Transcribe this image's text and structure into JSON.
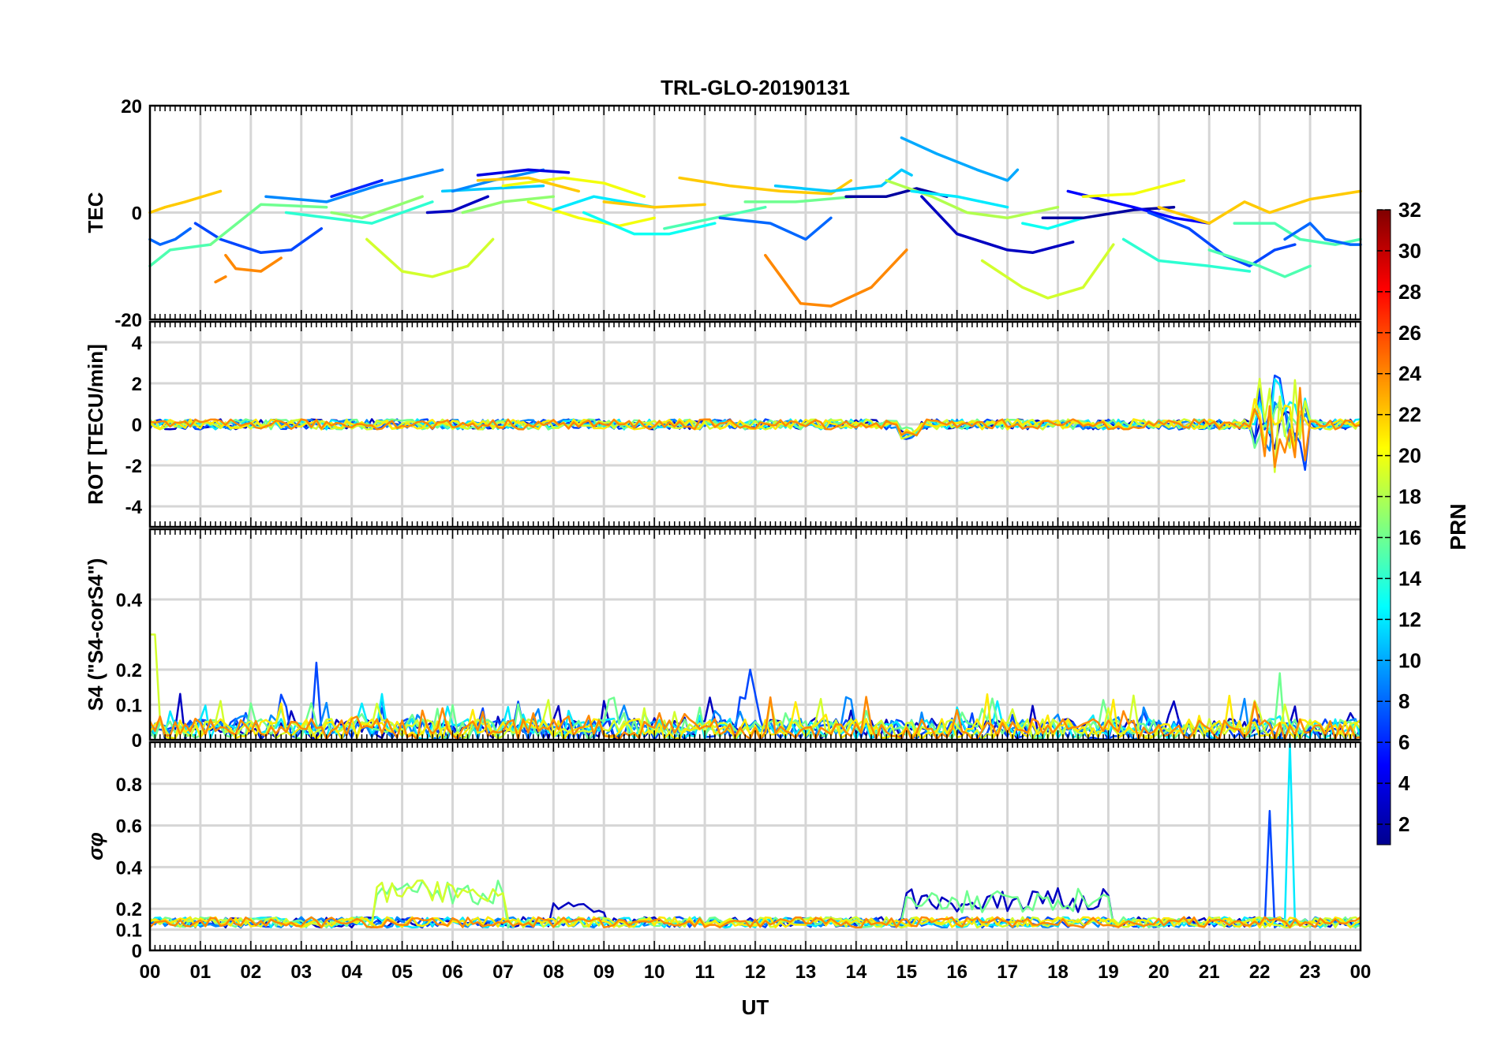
{
  "chart_data": {
    "type": "line",
    "title": "TRL-GLO-20190131",
    "xlabel": "UT",
    "x_ticks": [
      "00",
      "01",
      "02",
      "03",
      "04",
      "05",
      "06",
      "07",
      "08",
      "09",
      "10",
      "11",
      "12",
      "13",
      "14",
      "15",
      "16",
      "17",
      "18",
      "19",
      "20",
      "21",
      "22",
      "23",
      "00"
    ],
    "xlim": [
      0,
      24
    ],
    "grid": true,
    "colorbar": {
      "label": "PRN",
      "range": [
        1,
        32
      ],
      "ticks": [
        "2",
        "4",
        "6",
        "8",
        "10",
        "12",
        "14",
        "16",
        "18",
        "20",
        "22",
        "24",
        "26",
        "28",
        "30",
        "32"
      ],
      "colormap": "jet"
    },
    "panels": [
      {
        "id": "tec",
        "ylabel": "TEC",
        "ylim": [
          -20,
          20
        ],
        "y_ticks": [
          "20",
          "0",
          "-20"
        ],
        "y_tick_values": [
          20,
          0,
          -20
        ],
        "series": [
          {
            "prn": 22,
            "x": [
              0,
              0.3,
              0.7,
              1.4
            ],
            "y": [
              0,
              1,
              2,
              4
            ]
          },
          {
            "prn": 8,
            "x": [
              0,
              0.2,
              0.5,
              0.8
            ],
            "y": [
              -5,
              -6,
              -5,
              -3
            ]
          },
          {
            "prn": 15,
            "x": [
              0,
              0.4,
              0.8,
              1.2
            ],
            "y": [
              -10,
              -7,
              -6.5,
              -6
            ]
          },
          {
            "prn": 24,
            "x": [
              1.3,
              1.5
            ],
            "y": [
              -13,
              -12
            ]
          },
          {
            "prn": 24,
            "x": [
              1.5,
              1.7,
              2.2,
              2.6
            ],
            "y": [
              -8,
              -10.5,
              -11,
              -8.5
            ]
          },
          {
            "prn": 7,
            "x": [
              0.9,
              1.4,
              2.2,
              2.8,
              3.4
            ],
            "y": [
              -2,
              -5,
              -7.5,
              -7,
              -3
            ]
          },
          {
            "prn": 16,
            "x": [
              1.2,
              2.2,
              3.5
            ],
            "y": [
              -6,
              1.5,
              1
            ]
          },
          {
            "prn": 9,
            "x": [
              2.3,
              3.5,
              4.5,
              5.8
            ],
            "y": [
              3,
              2,
              5,
              8
            ]
          },
          {
            "prn": 6,
            "x": [
              3.6,
              4.6
            ],
            "y": [
              3,
              6
            ]
          },
          {
            "prn": 14,
            "x": [
              2.7,
              4.4,
              5.6
            ],
            "y": [
              0,
              -2,
              2
            ]
          },
          {
            "prn": 19,
            "x": [
              4.3,
              5.0,
              5.6,
              6.3,
              6.8
            ],
            "y": [
              -5,
              -11,
              -12,
              -10,
              -5
            ]
          },
          {
            "prn": 17,
            "x": [
              3.6,
              4.2,
              5.4
            ],
            "y": [
              0,
              -1,
              3
            ]
          },
          {
            "prn": 3,
            "x": [
              5.5,
              6.0,
              6.7
            ],
            "y": [
              0,
              0.3,
              3
            ]
          },
          {
            "prn": 11,
            "x": [
              5.8,
              6.8,
              7.8
            ],
            "y": [
              4,
              4.5,
              5
            ]
          },
          {
            "prn": 9,
            "x": [
              6.0,
              6.8,
              7.8
            ],
            "y": [
              4,
              6,
              8
            ]
          },
          {
            "prn": 4,
            "x": [
              6.5,
              7.5,
              8.3
            ],
            "y": [
              7,
              8,
              7.5
            ]
          },
          {
            "prn": 17,
            "x": [
              6.2,
              7.0,
              8.0
            ],
            "y": [
              0,
              2,
              3
            ]
          },
          {
            "prn": 20,
            "x": [
              7.0,
              8.2,
              9.0,
              9.8
            ],
            "y": [
              5,
              6.5,
              5.5,
              3
            ]
          },
          {
            "prn": 20,
            "x": [
              7.5,
              8.5,
              9.3,
              10.0
            ],
            "y": [
              2,
              -1,
              -2.5,
              -1
            ]
          },
          {
            "prn": 22,
            "x": [
              6.5,
              7.5,
              8.5
            ],
            "y": [
              6,
              6.5,
              4
            ]
          },
          {
            "prn": 13,
            "x": [
              8.6,
              9.6,
              10.3,
              11.2
            ],
            "y": [
              0,
              -4,
              -4,
              -2
            ]
          },
          {
            "prn": 12,
            "x": [
              8.0,
              8.8,
              10.0
            ],
            "y": [
              0.5,
              3,
              1
            ]
          },
          {
            "prn": 22,
            "x": [
              9.0,
              10.0,
              11.0
            ],
            "y": [
              2,
              1,
              1.5
            ]
          },
          {
            "prn": 15,
            "x": [
              10.2,
              11.2,
              12.2
            ],
            "y": [
              -3,
              -1,
              1
            ]
          },
          {
            "prn": 22,
            "x": [
              10.5,
              11.5,
              12.5,
              13.5,
              13.9
            ],
            "y": [
              6.5,
              5,
              4,
              3.5,
              6
            ]
          },
          {
            "prn": 8,
            "x": [
              11.3,
              12.3,
              13.0,
              13.5
            ],
            "y": [
              -1,
              -2,
              -5,
              -1
            ]
          },
          {
            "prn": 16,
            "x": [
              11.8,
              12.8,
              14.0
            ],
            "y": [
              2,
              2,
              3
            ]
          },
          {
            "prn": 24,
            "x": [
              12.2,
              12.9,
              13.5,
              14.3,
              15.0
            ],
            "y": [
              -8,
              -17,
              -17.5,
              -14,
              -7
            ]
          },
          {
            "prn": 11,
            "x": [
              12.4,
              13.5,
              14.5,
              14.9,
              15.1
            ],
            "y": [
              5,
              4,
              5,
              8,
              7
            ]
          },
          {
            "prn": 2,
            "x": [
              13.8,
              14.6,
              15.2,
              15.8
            ],
            "y": [
              3,
              3,
              4.5,
              3
            ]
          },
          {
            "prn": 10,
            "x": [
              14.9,
              15.6,
              16.4,
              17.0,
              17.2
            ],
            "y": [
              14,
              11,
              8,
              6,
              8
            ]
          },
          {
            "prn": 3,
            "x": [
              15.3,
              16.0,
              17.0,
              17.5,
              18.3
            ],
            "y": [
              3,
              -4,
              -7,
              -7.5,
              -5.5
            ]
          },
          {
            "prn": 18,
            "x": [
              14.6,
              15.5,
              16.2,
              17.0,
              18.0
            ],
            "y": [
              6,
              3,
              0,
              -1,
              1
            ]
          },
          {
            "prn": 12,
            "x": [
              15.1,
              16.0,
              17.0
            ],
            "y": [
              4,
              3,
              1
            ]
          },
          {
            "prn": 19,
            "x": [
              16.5,
              17.3,
              17.8,
              18.5,
              19.1
            ],
            "y": [
              -9,
              -14,
              -16,
              -14,
              -6
            ]
          },
          {
            "prn": 13,
            "x": [
              17.3,
              17.8,
              18.5
            ],
            "y": [
              -2,
              -3,
              -1
            ]
          },
          {
            "prn": 2,
            "x": [
              17.7,
              18.5,
              19.5,
              20.3
            ],
            "y": [
              -1,
              -1,
              0.5,
              1
            ]
          },
          {
            "prn": 5,
            "x": [
              18.2,
              19.5,
              20.3,
              21.0
            ],
            "y": [
              4,
              1,
              -1,
              -2
            ]
          },
          {
            "prn": 20,
            "x": [
              18.5,
              19.5,
              20.5
            ],
            "y": [
              3,
              3.5,
              6
            ]
          },
          {
            "prn": 14,
            "x": [
              19.3,
              20.0,
              21.0,
              21.8
            ],
            "y": [
              -5,
              -9,
              -10,
              -11
            ]
          },
          {
            "prn": 22,
            "x": [
              20.0,
              21.0,
              21.7,
              22.2,
              23.0,
              24.0
            ],
            "y": [
              1,
              -2,
              2,
              0,
              2.5,
              4
            ]
          },
          {
            "prn": 7,
            "x": [
              19.8,
              20.6,
              21.3,
              21.8,
              22.3,
              22.7
            ],
            "y": [
              0,
              -3,
              -8,
              -10,
              -7,
              -6
            ]
          },
          {
            "prn": 15,
            "x": [
              21.5,
              22.3,
              22.8,
              23.5,
              24.0
            ],
            "y": [
              -2,
              -2,
              -5,
              -6,
              -5
            ]
          },
          {
            "prn": 15,
            "x": [
              21.0,
              22.0,
              22.5,
              23.0
            ],
            "y": [
              -7,
              -10,
              -12,
              -10
            ]
          },
          {
            "prn": 8,
            "x": [
              22.5,
              23.0,
              23.3,
              23.8,
              24.0
            ],
            "y": [
              -5,
              -2,
              -5,
              -6,
              -6
            ]
          }
        ]
      },
      {
        "id": "rot",
        "ylabel": "ROT [TECU/min]",
        "ylim": [
          -5,
          5
        ],
        "y_ticks": [
          "4",
          "2",
          "0",
          "-2",
          "-4"
        ],
        "y_tick_values": [
          4,
          2,
          0,
          -2,
          -4
        ],
        "summary": "Near zero (about ±0.3 TECU/min) all day; small dip near 15 UT; fluctuations up to about +3 and -2.5 TECU/min between 22 and 23 UT."
      },
      {
        "id": "s4",
        "ylabel": "S4 (\"S4-corS4\")",
        "ylim": [
          0,
          0.6
        ],
        "y_ticks": [
          "0.4",
          "0.2",
          "0.1",
          "0"
        ],
        "y_tick_values": [
          0.4,
          0.2,
          0.1,
          0
        ],
        "summary": "Mostly 0–0.1; spikes near 0.3 at 00 UT, about 0.22 near 03 and 12 UT, about 0.19 near 22.5 UT."
      },
      {
        "id": "sigma_phi",
        "ylabel": "σφ",
        "ylim": [
          0,
          1
        ],
        "y_ticks": [
          "0.8",
          "0.6",
          "0.4",
          "0.2",
          "0.1",
          "0"
        ],
        "y_tick_values": [
          0.8,
          0.6,
          0.4,
          0.2,
          0.1,
          0
        ],
        "summary": "Baseline 0.1–0.2; elevated 0.2–0.35 between 04.5–07 UT and 15–19 UT; spikes to about 0.67 at 22.2 UT and about 1.0 at 22.6 UT."
      }
    ]
  }
}
